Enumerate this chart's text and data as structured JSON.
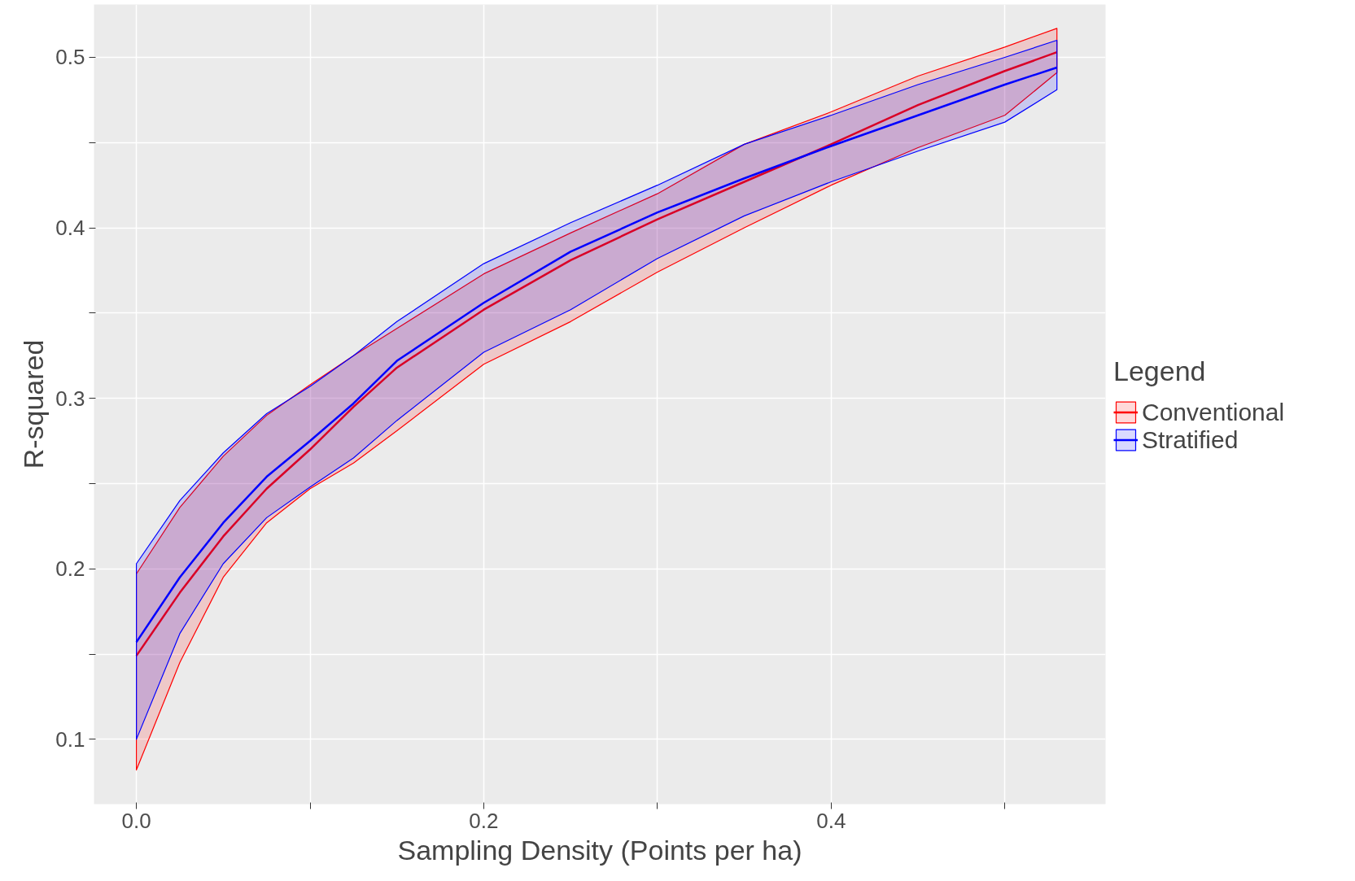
{
  "chart_data": {
    "type": "line",
    "xlabel": "Sampling Density (Points per ha)",
    "ylabel": "R-squared",
    "legend_title": "Legend",
    "legend": "right",
    "grid": true,
    "marker": "none",
    "line_style": "solid",
    "x": [
      0,
      0.025,
      0.05,
      0.075,
      0.1,
      0.125,
      0.15,
      0.2,
      0.25,
      0.3,
      0.35,
      0.4,
      0.45,
      0.5,
      0.53
    ],
    "xlim": [
      -0.0244,
      0.558
    ],
    "ylim": [
      0.062,
      0.531
    ],
    "xticks": [
      {
        "value": 0,
        "label": "0.0"
      },
      {
        "value": 0.1,
        "label": null
      },
      {
        "value": 0.2,
        "label": "0.2"
      },
      {
        "value": 0.3,
        "label": null
      },
      {
        "value": 0.4,
        "label": "0.4"
      },
      {
        "value": 0.5,
        "label": null
      }
    ],
    "yticks": [
      0.1,
      {
        "value": 0.15,
        "label": null
      },
      0.2,
      {
        "value": 0.25,
        "label": null
      },
      0.3,
      {
        "value": 0.35,
        "label": null
      },
      0.4,
      {
        "value": 0.45,
        "label": null
      },
      0.5
    ],
    "series": [
      {
        "name": "Conventional",
        "color": "#ff0000",
        "values": [
          0.149,
          0.186,
          0.219,
          0.247,
          0.27,
          0.295,
          0.318,
          0.352,
          0.381,
          0.405,
          0.427,
          0.449,
          0.472,
          0.492,
          0.503
        ],
        "lower": [
          0.082,
          0.145,
          0.195,
          0.227,
          0.247,
          0.262,
          0.281,
          0.32,
          0.345,
          0.374,
          0.4,
          0.425,
          0.447,
          0.466,
          0.491
        ],
        "upper": [
          0.197,
          0.236,
          0.266,
          0.29,
          0.308,
          0.325,
          0.341,
          0.373,
          0.397,
          0.42,
          0.449,
          0.468,
          0.489,
          0.506,
          0.517
        ]
      },
      {
        "name": "Stratified",
        "color": "#0000ff",
        "values": [
          0.157,
          0.195,
          0.227,
          0.254,
          0.275,
          0.297,
          0.322,
          0.356,
          0.386,
          0.409,
          0.429,
          0.448,
          0.466,
          0.484,
          0.494
        ],
        "lower": [
          0.1,
          0.162,
          0.203,
          0.23,
          0.248,
          0.265,
          0.287,
          0.327,
          0.352,
          0.382,
          0.407,
          0.427,
          0.445,
          0.462,
          0.481
        ],
        "upper": [
          0.203,
          0.24,
          0.268,
          0.291,
          0.307,
          0.325,
          0.345,
          0.379,
          0.403,
          0.425,
          0.449,
          0.466,
          0.484,
          0.5,
          0.51
        ]
      }
    ]
  }
}
